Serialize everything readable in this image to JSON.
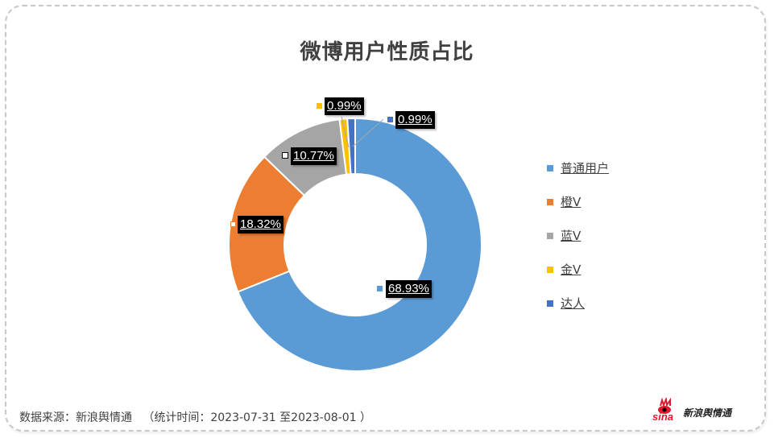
{
  "title": "微博用户性质占比",
  "chart_data": {
    "type": "pie",
    "subtype": "donut",
    "title": "微博用户性质占比",
    "categories": [
      "普通用户",
      "橙V",
      "蓝V",
      "金V",
      "达人"
    ],
    "values": [
      68.93,
      18.32,
      10.77,
      0.99,
      0.99
    ],
    "unit": "%",
    "colors": [
      "#5B9BD5",
      "#ED7D31",
      "#A5A5A5",
      "#FFC000",
      "#4472C4"
    ],
    "data_labels": [
      "68.93%",
      "18.32%",
      "10.77%",
      "0.99%",
      "0.99%"
    ],
    "legend_position": "right",
    "start_angle": 0,
    "direction": "clockwise"
  },
  "legend": {
    "items": [
      {
        "label": "普通用户",
        "color": "#5B9BD5"
      },
      {
        "label": "橙V",
        "color": "#ED7D31"
      },
      {
        "label": "蓝V",
        "color": "#A5A5A5"
      },
      {
        "label": "金V",
        "color": "#FFC000"
      },
      {
        "label": "达人",
        "color": "#4472C4"
      }
    ]
  },
  "labels": {
    "putong": "68.93%",
    "chengv": "18.32%",
    "lanv": "10.77%",
    "jinv": "0.99%",
    "daren": "0.99%"
  },
  "footer": {
    "source": "数据来源：新浪舆情通   （统计时间：2023-07-31 至2023-08-01 ）"
  },
  "logo": {
    "brand": "sina",
    "text": "新浪舆情通"
  }
}
